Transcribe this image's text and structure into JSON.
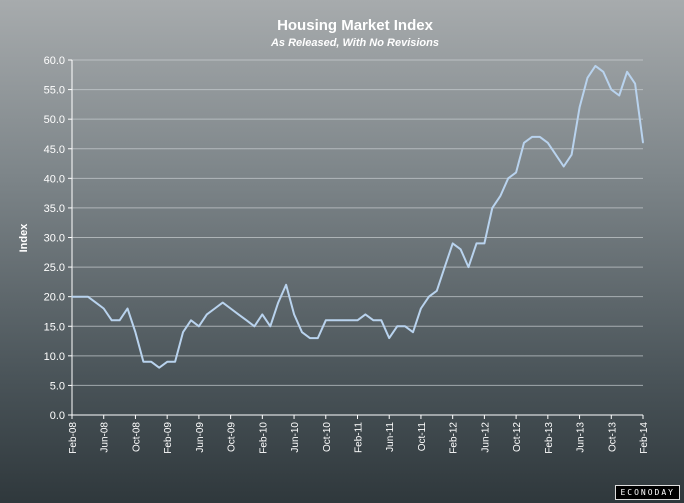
{
  "chart_data": {
    "type": "line",
    "title": "Housing Market Index",
    "subtitle": "As Released, With No Revisions",
    "ylabel": "Index",
    "ylim": [
      0,
      60
    ],
    "y_ticks": [
      "0.0",
      "5.0",
      "10.0",
      "15.0",
      "20.0",
      "25.0",
      "30.0",
      "35.0",
      "40.0",
      "45.0",
      "50.0",
      "55.0",
      "60.0"
    ],
    "x_tick_labels": [
      "Feb-08",
      "Jun-08",
      "Oct-08",
      "Feb-09",
      "Jun-09",
      "Oct-09",
      "Feb-10",
      "Jun-10",
      "Oct-10",
      "Feb-11",
      "Jun-11",
      "Oct-11",
      "Feb-12",
      "Jun-12",
      "Oct-12",
      "Feb-13",
      "Jun-13",
      "Oct-13",
      "Feb-14"
    ],
    "grid": true,
    "line_color": "#b9d3ee",
    "series": [
      {
        "x": [
          "Feb-08",
          "Mar-08",
          "Apr-08",
          "May-08",
          "Jun-08",
          "Jul-08",
          "Aug-08",
          "Sep-08",
          "Oct-08",
          "Nov-08",
          "Dec-08",
          "Jan-09",
          "Feb-09",
          "Mar-09",
          "Apr-09",
          "May-09",
          "Jun-09",
          "Jul-09",
          "Aug-09",
          "Sep-09",
          "Oct-09",
          "Nov-09",
          "Dec-09",
          "Jan-10",
          "Feb-10",
          "Mar-10",
          "Apr-10",
          "May-10",
          "Jun-10",
          "Jul-10",
          "Aug-10",
          "Sep-10",
          "Oct-10",
          "Nov-10",
          "Dec-10",
          "Jan-11",
          "Feb-11",
          "Mar-11",
          "Apr-11",
          "May-11",
          "Jun-11",
          "Jul-11",
          "Aug-11",
          "Sep-11",
          "Oct-11",
          "Nov-11",
          "Dec-11",
          "Jan-12",
          "Feb-12",
          "Mar-12",
          "Apr-12",
          "May-12",
          "Jun-12",
          "Jul-12",
          "Aug-12",
          "Sep-12",
          "Oct-12",
          "Nov-12",
          "Dec-12",
          "Jan-13",
          "Feb-13",
          "Mar-13",
          "Apr-13",
          "May-13",
          "Jun-13",
          "Jul-13",
          "Aug-13",
          "Sep-13",
          "Oct-13",
          "Nov-13",
          "Dec-13",
          "Jan-14",
          "Feb-14"
        ],
        "values": [
          20,
          20,
          20,
          19,
          18,
          16,
          16,
          18,
          14,
          9,
          9,
          8,
          9,
          9,
          14,
          16,
          15,
          17,
          18,
          19,
          18,
          17,
          16,
          15,
          17,
          15,
          19,
          22,
          17,
          14,
          13,
          13,
          16,
          16,
          16,
          16,
          16,
          17,
          16,
          16,
          13,
          15,
          15,
          14,
          18,
          20,
          21,
          25,
          29,
          28,
          25,
          29,
          29,
          35,
          37,
          40,
          41,
          46,
          47,
          47,
          46,
          44,
          42,
          44,
          52,
          57,
          59,
          58,
          55,
          54,
          58,
          56,
          46
        ]
      }
    ]
  },
  "branding": {
    "logo_text": "ECONODAY"
  }
}
